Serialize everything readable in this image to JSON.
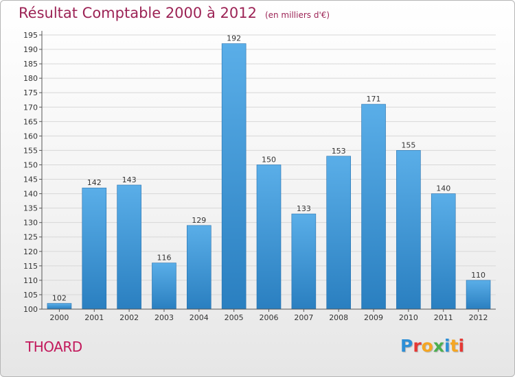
{
  "header": {
    "title": "Résultat Comptable 2000 à 2012",
    "subtitle": "(en milliers d'€)"
  },
  "footer": {
    "commune": "THOARD",
    "logo_letters": [
      "P",
      "r",
      "o",
      "x",
      "i",
      "t",
      "i"
    ],
    "logo_colors": [
      "#2e8fd6",
      "#e53935",
      "#f5a623",
      "#4caf50",
      "#2e8fd6",
      "#f5a623",
      "#e53935"
    ]
  },
  "chart_data": {
    "type": "bar",
    "title": "Résultat Comptable 2000 à 2012",
    "subtitle": "(en milliers d'€)",
    "xlabel": "",
    "ylabel": "",
    "categories": [
      "2000",
      "2001",
      "2002",
      "2003",
      "2004",
      "2005",
      "2006",
      "2007",
      "2008",
      "2009",
      "2010",
      "2011",
      "2012"
    ],
    "values": [
      102,
      142,
      143,
      116,
      129,
      192,
      150,
      133,
      153,
      171,
      155,
      140,
      110
    ],
    "ylim": [
      100,
      195
    ],
    "yticks": [
      100,
      105,
      110,
      115,
      120,
      125,
      130,
      135,
      140,
      145,
      150,
      155,
      160,
      165,
      170,
      175,
      180,
      185,
      190,
      195
    ],
    "grid": true,
    "bar_color_top": "#5aaee8",
    "bar_color_bottom": "#2a7fc0",
    "axis_color": "#555555",
    "grid_color": "#d7d7d7"
  }
}
